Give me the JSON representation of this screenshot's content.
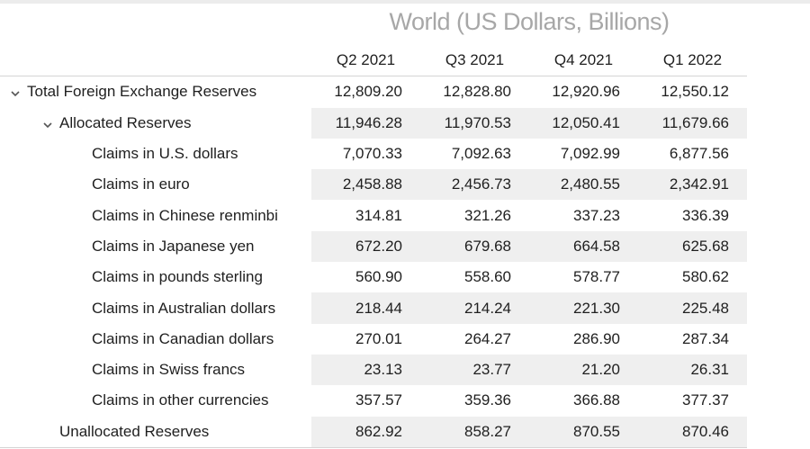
{
  "title": "World (US Dollars, Billions)",
  "columns": [
    "Q2 2021",
    "Q3 2021",
    "Q4 2021",
    "Q1 2022"
  ],
  "rows": [
    {
      "label": "Total Foreign Exchange Reserves",
      "values": [
        "12,809.20",
        "12,828.80",
        "12,920.96",
        "12,550.12"
      ]
    },
    {
      "label": "Allocated Reserves",
      "values": [
        "11,946.28",
        "11,970.53",
        "12,050.41",
        "11,679.66"
      ]
    },
    {
      "label": "Claims in U.S. dollars",
      "values": [
        "7,070.33",
        "7,092.63",
        "7,092.99",
        "6,877.56"
      ]
    },
    {
      "label": "Claims in euro",
      "values": [
        "2,458.88",
        "2,456.73",
        "2,480.55",
        "2,342.91"
      ]
    },
    {
      "label": "Claims in Chinese renminbi",
      "values": [
        "314.81",
        "321.26",
        "337.23",
        "336.39"
      ]
    },
    {
      "label": "Claims in Japanese yen",
      "values": [
        "672.20",
        "679.68",
        "664.58",
        "625.68"
      ]
    },
    {
      "label": "Claims in pounds sterling",
      "values": [
        "560.90",
        "558.60",
        "578.77",
        "580.62"
      ]
    },
    {
      "label": "Claims in Australian dollars",
      "values": [
        "218.44",
        "214.24",
        "221.30",
        "225.48"
      ]
    },
    {
      "label": "Claims in Canadian dollars",
      "values": [
        "270.01",
        "264.27",
        "286.90",
        "287.34"
      ]
    },
    {
      "label": "Claims in Swiss francs",
      "values": [
        "23.13",
        "23.77",
        "21.20",
        "26.31"
      ]
    },
    {
      "label": "Claims in other currencies",
      "values": [
        "357.57",
        "359.36",
        "366.88",
        "377.37"
      ]
    },
    {
      "label": "Unallocated Reserves",
      "values": [
        "862.92",
        "858.27",
        "870.55",
        "870.46"
      ]
    }
  ],
  "icons": {
    "expand_total": "chevron-down-icon",
    "expand_allocated": "chevron-down-icon"
  }
}
